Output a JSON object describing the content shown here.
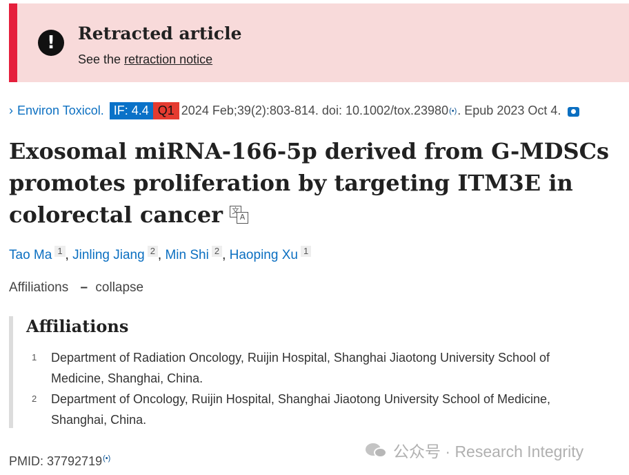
{
  "banner": {
    "icon": "exclamation-circle-icon",
    "title": "Retracted article",
    "subtitle_prefix": "See the ",
    "subtitle_link": "retraction notice",
    "accent_color": "#e51f3c",
    "background_color": "#f8dada"
  },
  "citation": {
    "journal": "Environ Toxicol.",
    "impact_factor": "IF: 4.4",
    "quartile": "Q1",
    "details": "2024 Feb;39(2):803-814. doi: 10.1002/tox.23980",
    "signal": "(•)",
    "epub": ". Epub 2023 Oct 4.",
    "camera_icon": "camera-icon"
  },
  "title": {
    "line1": "Exosomal miRNA-166-5p derived from G-MDSCs",
    "line2": "promotes proliferation by targeting ITM3E in",
    "line3": "colorectal cancer",
    "translate_icon": "translate-icon",
    "translate_a1": "文",
    "translate_a2": "A"
  },
  "authors": [
    {
      "name": "Tao Ma",
      "aff": "1"
    },
    {
      "name": "Jinling Jiang",
      "aff": "2"
    },
    {
      "name": "Min Shi",
      "aff": "2"
    },
    {
      "name": "Haoping Xu",
      "aff": "1"
    }
  ],
  "affiliations_toggle": {
    "label": "Affiliations",
    "dash": "–",
    "action": "collapse"
  },
  "affiliations": {
    "heading": "Affiliations",
    "items": [
      {
        "num": "1",
        "line1": "Department of Radiation Oncology, Ruijin Hospital, Shanghai Jiaotong University School of",
        "line2": "Medicine, Shanghai, China."
      },
      {
        "num": "2",
        "line1": "Department of Oncology, Ruijin Hospital, Shanghai Jiaotong University School of Medicine,",
        "line2": "Shanghai, China."
      }
    ]
  },
  "pmid": {
    "label": "PMID: 37792719",
    "signal": "(•)"
  },
  "watermark": {
    "text": "公众号 · Research Integrity",
    "icon": "wechat-icon"
  }
}
